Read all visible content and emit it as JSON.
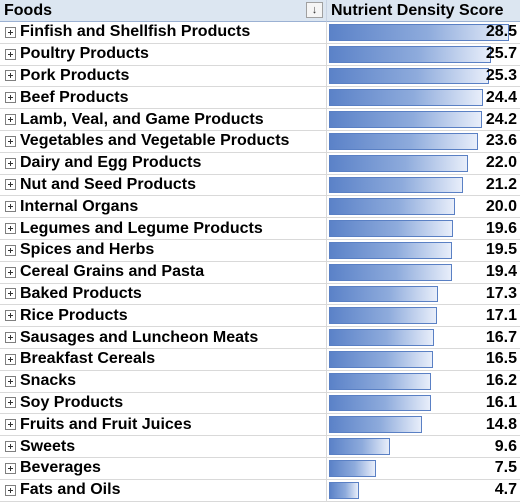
{
  "header": {
    "foods_label": "Foods",
    "score_label": "Nutrient Density Score",
    "filter_glyph": "↓"
  },
  "icons": {
    "expand": "expand-plus-icon",
    "filter": "sort-descending-icon"
  },
  "colors": {
    "bar_start": "#5b82c8",
    "bar_end": "#e8eefa",
    "bar_border": "#5a80c4",
    "header_bg": "#dce6f1"
  },
  "scale_max": 28.5,
  "rows": [
    {
      "name": "Finfish and Shellfish Products",
      "score": "28.5",
      "value": 28.5
    },
    {
      "name": "Poultry Products",
      "score": "25.7",
      "value": 25.7
    },
    {
      "name": "Pork Products",
      "score": "25.3",
      "value": 25.3
    },
    {
      "name": "Beef Products",
      "score": "24.4",
      "value": 24.4
    },
    {
      "name": "Lamb, Veal, and Game Products",
      "score": "24.2",
      "value": 24.2
    },
    {
      "name": "Vegetables and Vegetable Products",
      "score": "23.6",
      "value": 23.6
    },
    {
      "name": "Dairy and Egg Products",
      "score": "22.0",
      "value": 22.0
    },
    {
      "name": "Nut and Seed Products",
      "score": "21.2",
      "value": 21.2
    },
    {
      "name": "Internal Organs",
      "score": "20.0",
      "value": 20.0
    },
    {
      "name": "Legumes and Legume Products",
      "score": "19.6",
      "value": 19.6
    },
    {
      "name": "Spices and Herbs",
      "score": "19.5",
      "value": 19.5
    },
    {
      "name": "Cereal Grains and Pasta",
      "score": "19.4",
      "value": 19.4
    },
    {
      "name": "Baked Products",
      "score": "17.3",
      "value": 17.3
    },
    {
      "name": "Rice Products",
      "score": "17.1",
      "value": 17.1
    },
    {
      "name": "Sausages and Luncheon Meats",
      "score": "16.7",
      "value": 16.7
    },
    {
      "name": "Breakfast Cereals",
      "score": "16.5",
      "value": 16.5
    },
    {
      "name": "Snacks",
      "score": "16.2",
      "value": 16.2
    },
    {
      "name": "Soy Products",
      "score": "16.1",
      "value": 16.1
    },
    {
      "name": "Fruits and Fruit Juices",
      "score": "14.8",
      "value": 14.8
    },
    {
      "name": "Sweets",
      "score": "9.6",
      "value": 9.6
    },
    {
      "name": "Beverages",
      "score": "7.5",
      "value": 7.5
    },
    {
      "name": "Fats and Oils",
      "score": "4.7",
      "value": 4.7
    }
  ]
}
